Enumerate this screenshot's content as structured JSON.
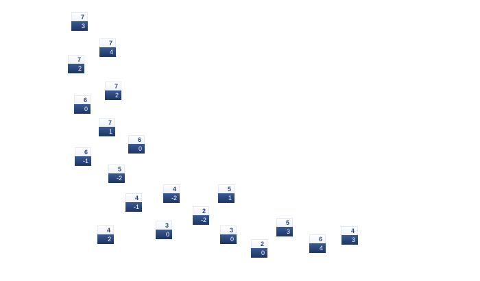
{
  "nodes": [
    {
      "top": "7",
      "bottom": "3"
    },
    {
      "top": "7",
      "bottom": "4"
    },
    {
      "top": "7",
      "bottom": "2"
    },
    {
      "top": "7",
      "bottom": "2"
    },
    {
      "top": "6",
      "bottom": "0"
    },
    {
      "top": "7",
      "bottom": "1"
    },
    {
      "top": "6",
      "bottom": "0"
    },
    {
      "top": "6",
      "bottom": "-1"
    },
    {
      "top": "5",
      "bottom": "-2"
    },
    {
      "top": "4",
      "bottom": "-2"
    },
    {
      "top": "5",
      "bottom": "1"
    },
    {
      "top": "4",
      "bottom": "-1"
    },
    {
      "top": "2",
      "bottom": "-2"
    },
    {
      "top": "3",
      "bottom": "0"
    },
    {
      "top": "5",
      "bottom": "3"
    },
    {
      "top": "4",
      "bottom": "2"
    },
    {
      "top": "3",
      "bottom": "0"
    },
    {
      "top": "4",
      "bottom": "3"
    },
    {
      "top": "6",
      "bottom": "4"
    },
    {
      "top": "2",
      "bottom": "0"
    }
  ],
  "colors": {
    "header_text": "#2b4578",
    "footer_bg": "#1c3462"
  }
}
